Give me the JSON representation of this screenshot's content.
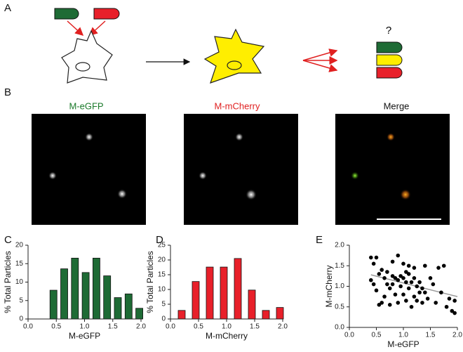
{
  "panel_labels": [
    "A",
    "B",
    "C",
    "D",
    "E"
  ],
  "question": "?",
  "images": {
    "titles": [
      "M-eGFP",
      "M-mCherry",
      "Merge"
    ],
    "title_colors": [
      "#1a7a2a",
      "#e02020",
      "#111111"
    ]
  },
  "chart_data": [
    {
      "type": "bar",
      "x": [
        0.45,
        0.64,
        0.83,
        1.02,
        1.21,
        1.4,
        1.59,
        1.78,
        1.97
      ],
      "values": [
        7.8,
        13.6,
        16.5,
        12.6,
        16.5,
        11.7,
        5.8,
        6.8,
        2.9
      ],
      "color": "#1e6b35",
      "xlabel": "M-eGFP",
      "ylabel": "% Total Particles",
      "xlim": [
        0,
        2
      ],
      "ylim": [
        0,
        20
      ],
      "xticks": [
        {
          "value": 0,
          "label": "0.0"
        },
        0.5,
        {
          "value": 1,
          "label": "1.0"
        },
        1.5,
        {
          "value": 2,
          "label": "2.0"
        }
      ],
      "yticks": [
        0,
        5,
        10,
        15,
        20
      ]
    },
    {
      "type": "bar",
      "x": [
        0.2,
        0.45,
        0.7,
        0.95,
        1.2,
        1.45,
        1.7,
        1.95
      ],
      "values": [
        2.9,
        12.7,
        17.6,
        17.6,
        20.5,
        9.8,
        2.9,
        3.9
      ],
      "color": "#e8202a",
      "xlabel": "M-mCherry",
      "ylabel": "% Total Particles",
      "xlim": [
        0,
        2
      ],
      "ylim": [
        0,
        25
      ],
      "xticks": [
        {
          "value": 0,
          "label": "0.0"
        },
        0.5,
        {
          "value": 1,
          "label": "1.0"
        },
        1.5,
        {
          "value": 2,
          "label": "2.0"
        }
      ],
      "yticks": [
        0,
        5,
        10,
        15,
        20,
        25
      ]
    },
    {
      "type": "scatter",
      "x": [
        0.4,
        0.45,
        0.5,
        0.4,
        0.45,
        0.5,
        0.55,
        0.6,
        0.6,
        0.65,
        0.65,
        0.7,
        0.7,
        0.75,
        0.75,
        0.8,
        0.8,
        0.85,
        0.85,
        0.9,
        0.9,
        0.9,
        0.95,
        0.95,
        1.0,
        1.0,
        1.0,
        1.05,
        1.05,
        1.1,
        1.1,
        1.1,
        1.15,
        1.15,
        1.2,
        1.2,
        1.2,
        1.25,
        1.25,
        1.3,
        1.3,
        1.35,
        1.35,
        1.4,
        1.4,
        1.45,
        1.5,
        1.55,
        1.6,
        1.65,
        1.7,
        1.75,
        1.8,
        1.85,
        1.9,
        1.95,
        1.95,
        0.55,
        1.05,
        0.8
      ],
      "values": [
        1.7,
        1.55,
        1.7,
        1.15,
        1.05,
        0.9,
        1.3,
        1.4,
        0.6,
        1.2,
        0.75,
        1.05,
        1.35,
        0.95,
        0.55,
        1.25,
        1.6,
        1.2,
        0.8,
        1.75,
        1.15,
        0.6,
        1.25,
        1.0,
        1.2,
        0.8,
        1.55,
        1.1,
        0.65,
        1.5,
        1.3,
        0.95,
        1.1,
        0.5,
        1.2,
        0.75,
        1.45,
        1.0,
        0.65,
        1.1,
        0.85,
        0.95,
        0.6,
        1.5,
        0.85,
        0.7,
        1.2,
        1.05,
        0.6,
        1.45,
        0.85,
        1.5,
        0.5,
        0.7,
        0.4,
        0.65,
        0.35,
        0.55,
        1.35,
        1.05
      ],
      "color": "#000000",
      "trend_line": {
        "x": [
          0.4,
          2.0
        ],
        "values": [
          1.28,
          0.75
        ],
        "color": "#9a9a9a"
      },
      "xlabel": "M-eGFP",
      "ylabel": "M-mCherry",
      "xlim": [
        0,
        2
      ],
      "ylim": [
        0,
        2
      ],
      "xticks": [
        {
          "value": 0,
          "label": "0.0"
        },
        0.5,
        {
          "value": 1,
          "label": "1.0"
        },
        1.5,
        {
          "value": 2,
          "label": "2.0"
        }
      ],
      "yticks": [
        {
          "value": 0,
          "label": "0.0"
        },
        0.5,
        {
          "value": 1,
          "label": "1.0"
        },
        1.5,
        {
          "value": 2,
          "label": "2.0"
        }
      ]
    }
  ]
}
